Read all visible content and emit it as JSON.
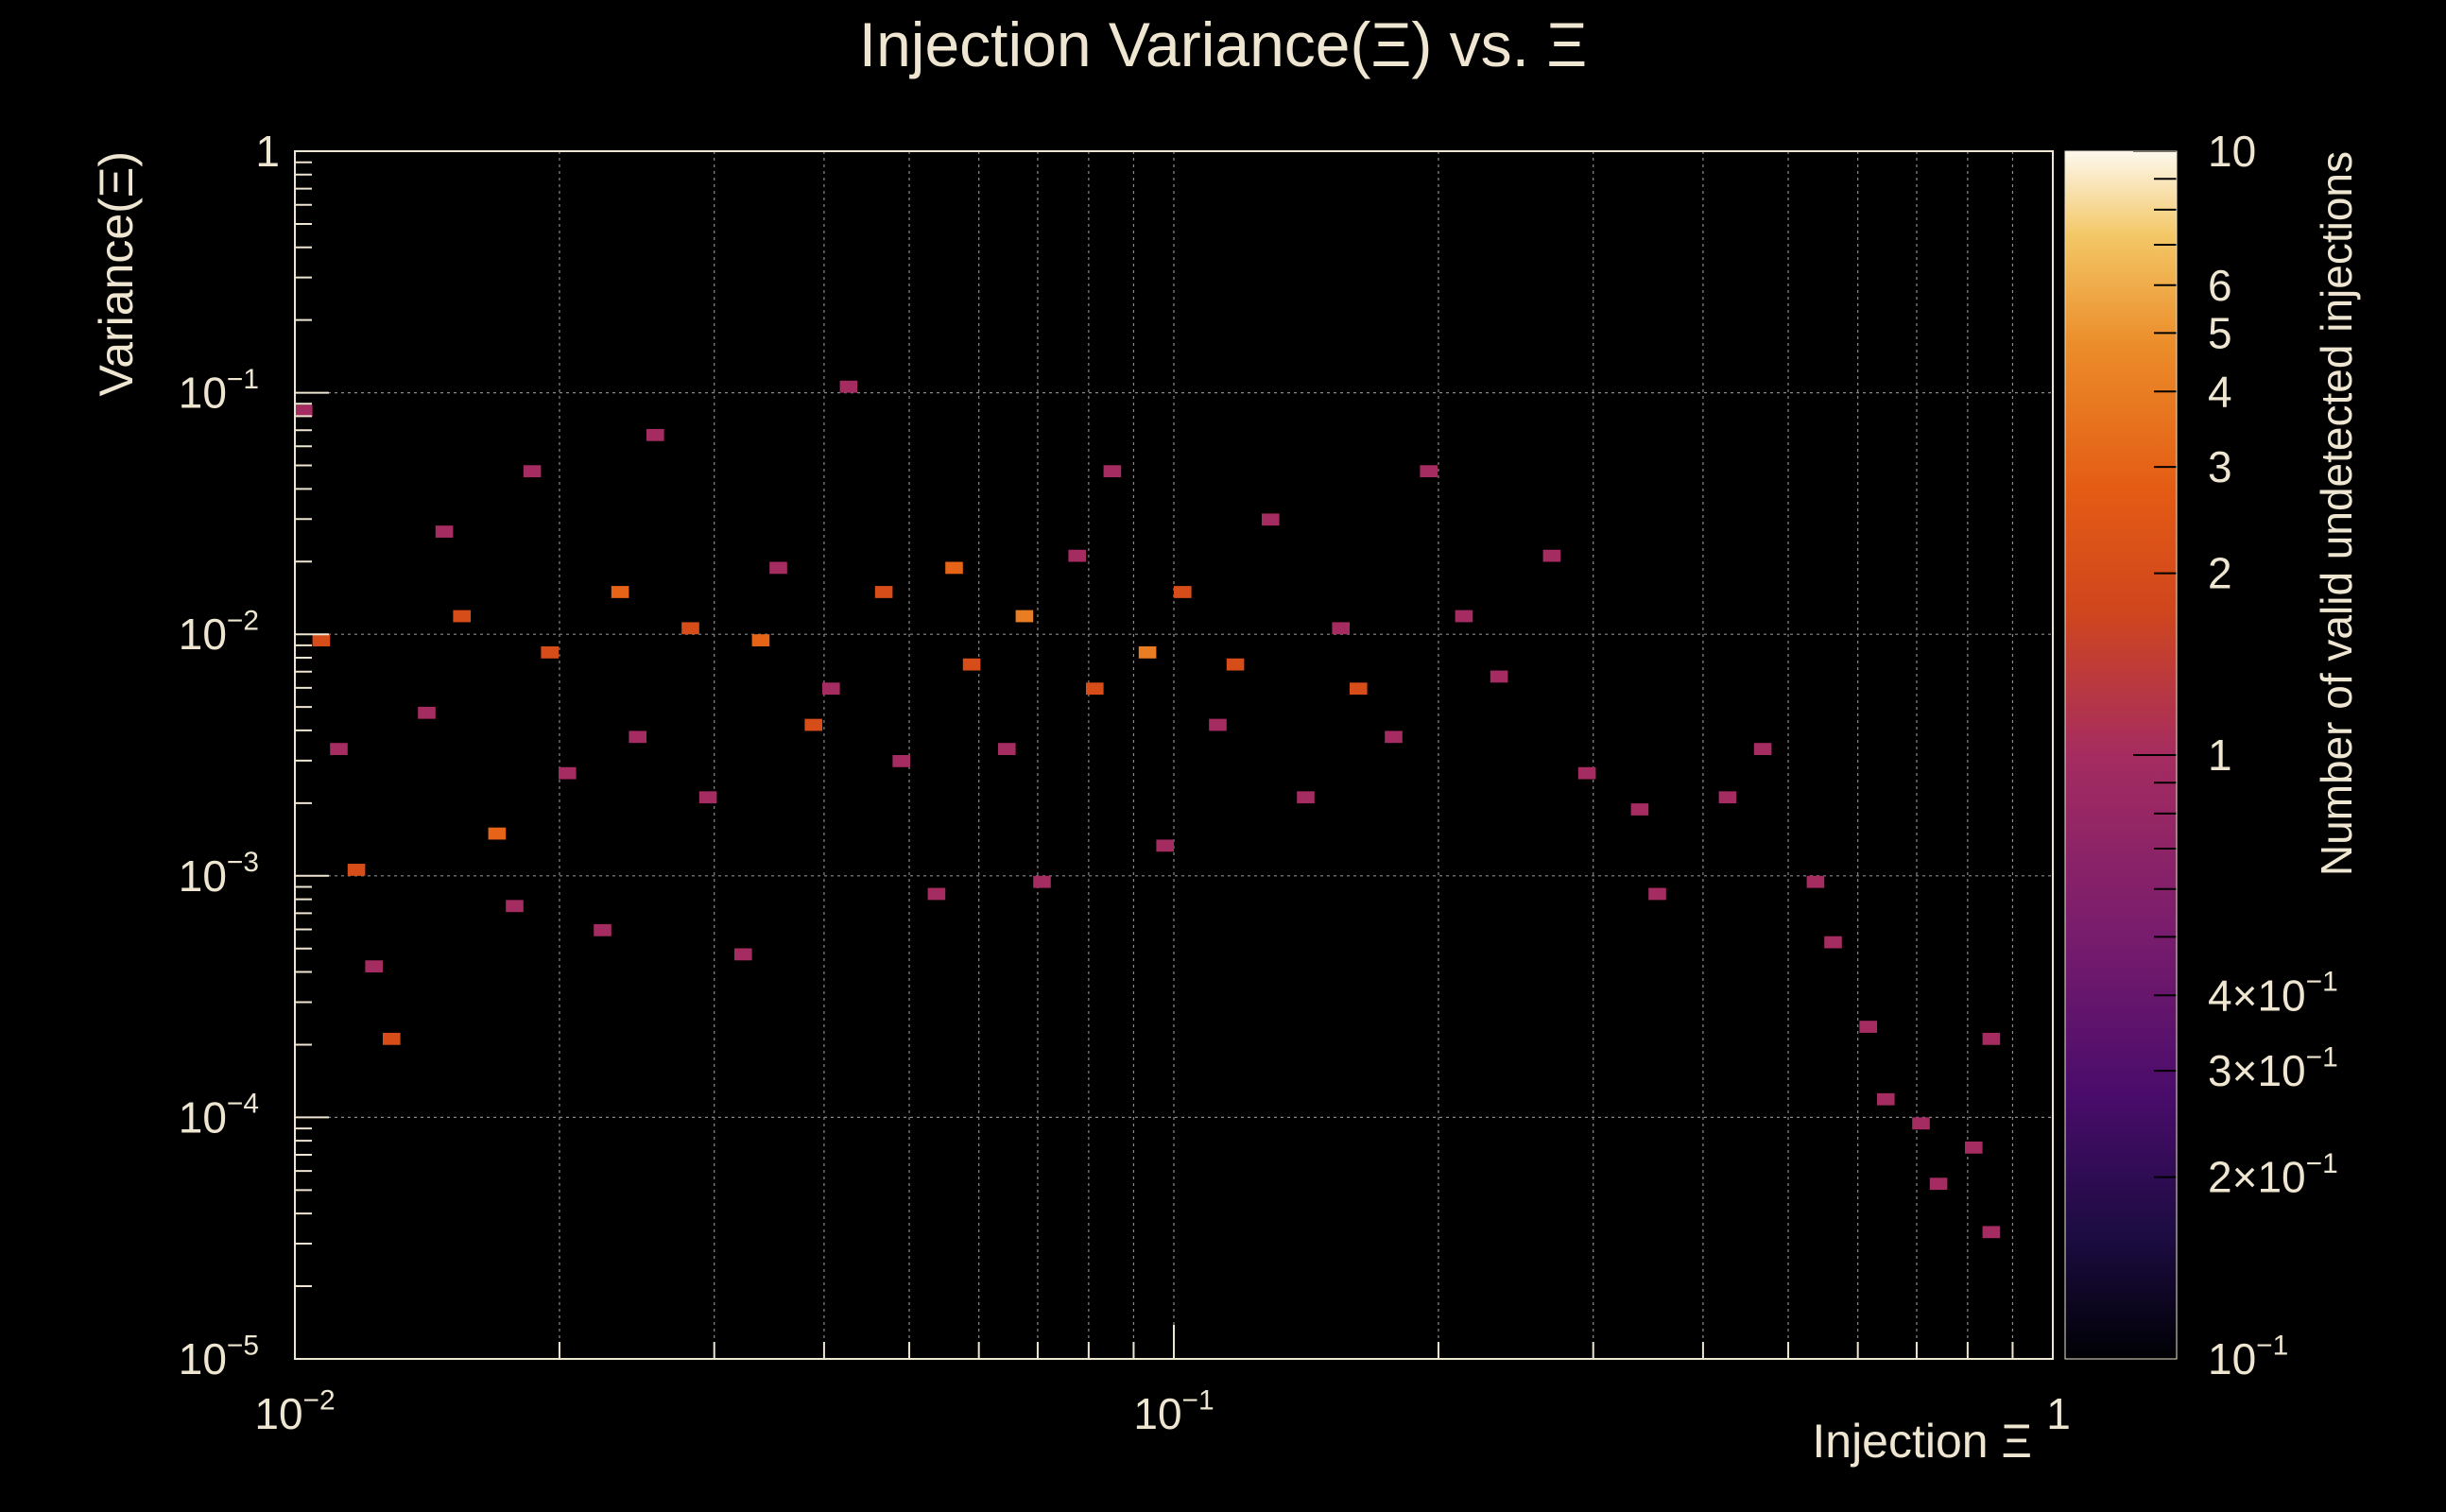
{
  "chart_data": {
    "type": "heatmap",
    "title": "Injection Variance(Ξ) vs. Ξ",
    "xlabel": "Injection Ξ",
    "ylabel": "Variance(Ξ)",
    "zlabel": "Number of valid undetected injections",
    "xscale": "log",
    "yscale": "log",
    "zscale": "log",
    "xlim": [
      0.01,
      1
    ],
    "ylim": [
      1e-05,
      1
    ],
    "zlim": [
      0.1,
      10
    ],
    "grid": true,
    "colormap": "inferno",
    "x_tick_labels": [
      {
        "value": 0.01,
        "base": "10",
        "exp": "−2"
      },
      {
        "value": 0.1,
        "base": "10",
        "exp": "−1"
      },
      {
        "value": 1,
        "base": "1",
        "exp": ""
      }
    ],
    "y_tick_labels": [
      {
        "value": 1,
        "base": "1",
        "exp": ""
      },
      {
        "value": 0.1,
        "base": "10",
        "exp": "−1"
      },
      {
        "value": 0.01,
        "base": "10",
        "exp": "−2"
      },
      {
        "value": 0.001,
        "base": "10",
        "exp": "−3"
      },
      {
        "value": 0.0001,
        "base": "10",
        "exp": "−4"
      },
      {
        "value": 1e-05,
        "base": "10",
        "exp": "−5"
      }
    ],
    "z_tick_labels": [
      {
        "value": 10,
        "base": "10",
        "exp": ""
      },
      {
        "value": 6,
        "base": "6",
        "exp": ""
      },
      {
        "value": 5,
        "base": "5",
        "exp": ""
      },
      {
        "value": 4,
        "base": "4",
        "exp": ""
      },
      {
        "value": 3,
        "base": "3",
        "exp": ""
      },
      {
        "value": 2,
        "base": "2",
        "exp": ""
      },
      {
        "value": 1,
        "base": "1",
        "exp": ""
      },
      {
        "value": 0.4,
        "base": "4×10",
        "exp": "−1"
      },
      {
        "value": 0.3,
        "base": "3×10",
        "exp": "−1"
      },
      {
        "value": 0.2,
        "base": "2×10",
        "exp": "−1"
      },
      {
        "value": 0.1,
        "base": "10",
        "exp": "−1"
      }
    ],
    "bins": {
      "x_bins": 100,
      "y_bins": 100
    },
    "points": [
      [
        0.0102,
        0.0815,
        1
      ],
      [
        0.0109,
        0.0095,
        2
      ],
      [
        0.0112,
        0.0032,
        1
      ],
      [
        0.0118,
        0.0011,
        2
      ],
      [
        0.0123,
        0.00042,
        1
      ],
      [
        0.0131,
        0.00021,
        2
      ],
      [
        0.0139,
        0.0049,
        1
      ],
      [
        0.0147,
        0.0275,
        1
      ],
      [
        0.0155,
        0.0124,
        2
      ],
      [
        0.0168,
        0.00155,
        3
      ],
      [
        0.0176,
        0.00073,
        1
      ],
      [
        0.0187,
        0.0455,
        1
      ],
      [
        0.0196,
        0.0082,
        2
      ],
      [
        0.0208,
        0.0026,
        1
      ],
      [
        0.0221,
        0.00058,
        1
      ],
      [
        0.0234,
        0.0158,
        3
      ],
      [
        0.0249,
        0.0039,
        1
      ],
      [
        0.0262,
        0.0681,
        1
      ],
      [
        0.0281,
        0.0112,
        2
      ],
      [
        0.0297,
        0.0021,
        1
      ],
      [
        0.0318,
        0.00048,
        1
      ],
      [
        0.0334,
        0.0095,
        3
      ],
      [
        0.0352,
        0.0192,
        1
      ],
      [
        0.0381,
        0.0041,
        2
      ],
      [
        0.0408,
        0.0062,
        1
      ],
      [
        0.0431,
        0.112,
        1
      ],
      [
        0.0462,
        0.0151,
        2
      ],
      [
        0.0491,
        0.0029,
        1
      ],
      [
        0.0527,
        0.00081,
        1
      ],
      [
        0.0565,
        0.0188,
        3
      ],
      [
        0.0598,
        0.0072,
        2
      ],
      [
        0.0635,
        0.0035,
        1
      ],
      [
        0.0671,
        0.0122,
        4
      ],
      [
        0.0712,
        0.00094,
        1
      ],
      [
        0.0761,
        0.0201,
        1
      ],
      [
        0.0803,
        0.0058,
        2
      ],
      [
        0.0852,
        0.0452,
        1
      ],
      [
        0.0921,
        0.0088,
        4
      ],
      [
        0.0975,
        0.0014,
        1
      ],
      [
        0.104,
        0.0152,
        2
      ],
      [
        0.112,
        0.0041,
        1
      ],
      [
        0.119,
        0.0071,
        2
      ],
      [
        0.128,
        0.0312,
        1
      ],
      [
        0.139,
        0.0022,
        1
      ],
      [
        0.152,
        0.0105,
        1
      ],
      [
        0.164,
        0.0062,
        2
      ],
      [
        0.179,
        0.0039,
        1
      ],
      [
        0.195,
        0.0451,
        1
      ],
      [
        0.212,
        0.0125,
        1
      ],
      [
        0.235,
        0.0068,
        1
      ],
      [
        0.268,
        0.0205,
        1
      ],
      [
        0.291,
        0.0028,
        1
      ],
      [
        0.335,
        0.0019,
        1
      ],
      [
        0.362,
        0.00082,
        1
      ],
      [
        0.425,
        0.0021,
        1
      ],
      [
        0.478,
        0.0032,
        1
      ],
      [
        0.532,
        0.00095,
        1
      ],
      [
        0.569,
        0.00051,
        1
      ],
      [
        0.612,
        0.00025,
        1
      ],
      [
        0.645,
        0.00012,
        1
      ],
      [
        0.701,
        0.0001,
        1
      ],
      [
        0.742,
        5.5e-05,
        1
      ],
      [
        0.796,
        7.8e-05,
        1
      ],
      [
        0.842,
        3.4e-05,
        1
      ],
      [
        0.86,
        0.00021,
        1
      ]
    ]
  }
}
